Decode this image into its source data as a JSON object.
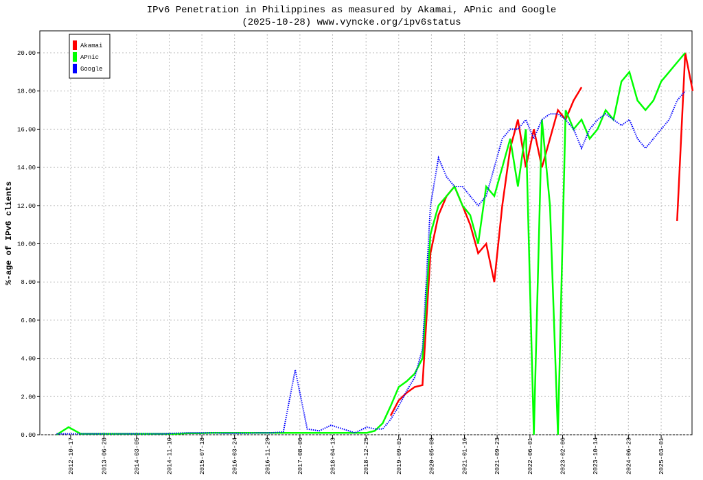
{
  "chart_data": {
    "type": "line",
    "title": "IPv6 Penetration in Philippines as measured by Akamai, APnic and Google",
    "subtitle": "(2025-10-28) www.vyncke.org/ipv6status",
    "y_label": "%-age of IPv6 clients",
    "x": [
      "2012-07-01",
      "2012-10-01",
      "2013-01-01",
      "2013-04-01",
      "2013-07-01",
      "2013-10-01",
      "2014-01-01",
      "2014-04-01",
      "2014-07-01",
      "2014-10-01",
      "2015-01-01",
      "2015-04-01",
      "2015-07-01",
      "2015-10-01",
      "2016-01-01",
      "2016-04-01",
      "2016-07-01",
      "2016-10-01",
      "2017-01-01",
      "2017-04-01",
      "2017-07-01",
      "2017-10-01",
      "2018-01-01",
      "2018-04-01",
      "2018-07-01",
      "2018-10-01",
      "2019-01-01",
      "2019-03-01",
      "2019-05-01",
      "2019-07-01",
      "2019-09-01",
      "2019-11-01",
      "2020-01-01",
      "2020-03-01",
      "2020-05-01",
      "2020-07-01",
      "2020-09-01",
      "2020-11-01",
      "2021-01-01",
      "2021-03-01",
      "2021-05-01",
      "2021-07-01",
      "2021-09-01",
      "2021-11-01",
      "2022-01-01",
      "2022-03-01",
      "2022-05-01",
      "2022-07-01",
      "2022-09-01",
      "2022-11-01",
      "2023-01-01",
      "2023-03-01",
      "2023-05-01",
      "2023-07-01",
      "2023-09-01",
      "2023-11-01",
      "2024-01-01",
      "2024-03-01",
      "2024-05-01",
      "2024-07-01",
      "2024-09-01",
      "2024-11-01",
      "2025-01-01",
      "2025-03-01",
      "2025-05-01",
      "2025-07-01",
      "2025-09-01",
      "2025-10-28"
    ],
    "series": [
      {
        "name": "Akamai",
        "color": "#ff0000",
        "dotted": false,
        "values": [
          null,
          null,
          null,
          null,
          null,
          null,
          null,
          null,
          null,
          null,
          null,
          null,
          null,
          null,
          null,
          null,
          null,
          null,
          null,
          null,
          null,
          null,
          null,
          null,
          null,
          null,
          null,
          null,
          null,
          1.0,
          1.8,
          2.2,
          2.5,
          2.6,
          9.5,
          11.5,
          12.5,
          13.0,
          12.0,
          11.0,
          9.5,
          10.0,
          8.0,
          12.0,
          15.0,
          16.5,
          14.0,
          16.0,
          14.0,
          15.5,
          17.0,
          16.5,
          17.5,
          18.2,
          null,
          null,
          null,
          null,
          null,
          null,
          null,
          null,
          null,
          null,
          null,
          11.2,
          20.0,
          18.0
        ]
      },
      {
        "name": "APnic",
        "color": "#00ff00",
        "dotted": false,
        "values": [
          0.0,
          0.4,
          0.05,
          0.05,
          0.05,
          0.05,
          0.05,
          0.05,
          0.05,
          0.05,
          0.05,
          0.08,
          0.08,
          0.1,
          0.1,
          0.1,
          0.1,
          0.1,
          0.1,
          0.1,
          0.1,
          0.1,
          0.1,
          0.1,
          0.1,
          0.1,
          0.1,
          0.2,
          0.6,
          1.5,
          2.5,
          2.8,
          3.2,
          4.0,
          10.5,
          12.0,
          12.5,
          13.0,
          12.0,
          11.5,
          10.0,
          13.0,
          12.5,
          14.0,
          15.5,
          13.0,
          16.0,
          0.0,
          16.5,
          12.0,
          0.0,
          17.0,
          16.0,
          16.5,
          15.5,
          16.0,
          17.0,
          16.5,
          18.5,
          19.0,
          17.5,
          17.0,
          17.5,
          18.5,
          19.0,
          19.5,
          20.0,
          null
        ]
      },
      {
        "name": "Google",
        "color": "#0000ff",
        "dotted": true,
        "values": [
          0.05,
          0.05,
          0.05,
          0.05,
          0.05,
          0.05,
          0.05,
          0.05,
          0.05,
          0.05,
          0.08,
          0.1,
          0.1,
          0.1,
          0.08,
          0.08,
          0.08,
          0.1,
          0.1,
          0.15,
          3.4,
          0.3,
          0.2,
          0.5,
          0.3,
          0.1,
          0.4,
          0.3,
          0.3,
          0.8,
          1.5,
          2.3,
          3.0,
          4.5,
          12.0,
          14.5,
          13.5,
          13.0,
          13.0,
          12.5,
          12.0,
          12.5,
          14.0,
          15.5,
          16.0,
          16.0,
          16.5,
          15.5,
          16.5,
          16.8,
          16.8,
          16.5,
          16.0,
          15.0,
          16.0,
          16.5,
          16.8,
          16.5,
          16.2,
          16.5,
          15.5,
          15.0,
          15.5,
          16.0,
          16.5,
          17.5,
          18.0,
          null
        ]
      }
    ],
    "xlim": [
      "2012-02-24",
      "2025-10-23"
    ],
    "xticks": [
      "2012-10-17",
      "2013-06-28",
      "2014-03-05",
      "2014-11-10",
      "2015-07-18",
      "2016-03-24",
      "2016-11-29",
      "2017-08-06",
      "2018-04-13",
      "2018-12-25",
      "2019-09-01",
      "2020-05-08",
      "2021-01-16",
      "2021-09-23",
      "2022-06-01",
      "2023-02-06",
      "2023-10-14",
      "2024-06-23",
      "2025-03-01"
    ],
    "ylim": [
      0,
      21.15
    ],
    "yticks": [
      {
        "value": 0,
        "label": "0.00"
      },
      {
        "value": 2,
        "label": "2.00"
      },
      {
        "value": 4,
        "label": "4.00"
      },
      {
        "value": 6,
        "label": "6.00"
      },
      {
        "value": 8,
        "label": "8.00"
      },
      {
        "value": 10,
        "label": "10.00"
      },
      {
        "value": 12,
        "label": "12.00"
      },
      {
        "value": 14,
        "label": "14.00"
      },
      {
        "value": 16,
        "label": "16.00"
      },
      {
        "value": 18,
        "label": "18.00"
      },
      {
        "value": 20,
        "label": "20.00"
      }
    ],
    "grid": true,
    "legend": "top-left"
  }
}
